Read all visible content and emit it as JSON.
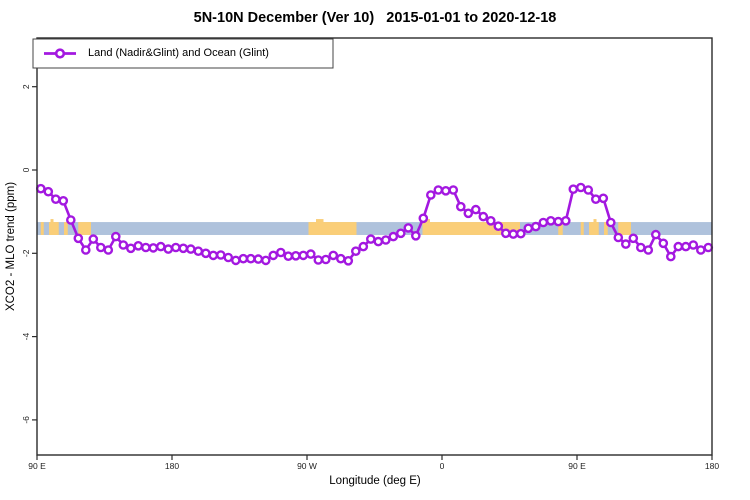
{
  "chart_data": {
    "type": "line",
    "title": "5N-10N December (Ver 10)   2015-01-01 to 2020-12-18",
    "xlabel": "Longitude (deg E)",
    "ylabel": "XCO2 - MLO trend (ppm)",
    "legend": {
      "label": "Land (Nadir&Glint) and Ocean (Glint)",
      "position": "top-left",
      "marker": "open-circle-on-line"
    },
    "x_axis": {
      "range_deg": [
        90,
        540
      ],
      "ticks": [
        {
          "lon": 90,
          "label": "90 E"
        },
        {
          "lon": 180,
          "label": "180"
        },
        {
          "lon": 270,
          "label": "90 W"
        },
        {
          "lon": 360,
          "label": "0"
        },
        {
          "lon": 450,
          "label": "90 E"
        },
        {
          "lon": 540,
          "label": "180"
        }
      ]
    },
    "y_axis": {
      "range": [
        -6.85,
        3.17
      ],
      "grid": false,
      "ticks": [
        {
          "value": 2,
          "label": "2"
        },
        {
          "value": 0,
          "label": "0"
        },
        {
          "value": -2,
          "label": "-2"
        },
        {
          "value": -4,
          "label": "-4"
        },
        {
          "value": -6,
          "label": "-6"
        }
      ]
    },
    "series": [
      {
        "name": "Land (Nadir&Glint) and Ocean (Glint)",
        "color": "#A318E0",
        "marker": "open-circle",
        "lon_start": 92.5,
        "lon_step": 5,
        "values": [
          -0.45,
          -0.52,
          -0.7,
          -0.74,
          -1.2,
          -1.64,
          -1.92,
          -1.66,
          -1.86,
          -1.92,
          -1.6,
          -1.8,
          -1.88,
          -1.82,
          -1.86,
          -1.87,
          -1.84,
          -1.9,
          -1.86,
          -1.88,
          -1.9,
          -1.95,
          -2.0,
          -2.05,
          -2.04,
          -2.1,
          -2.17,
          -2.13,
          -2.13,
          -2.14,
          -2.17,
          -2.05,
          -1.98,
          -2.07,
          -2.06,
          -2.05,
          -2.02,
          -2.16,
          -2.15,
          -2.05,
          -2.13,
          -2.18,
          -1.95,
          -1.84,
          -1.66,
          -1.72,
          -1.68,
          -1.6,
          -1.52,
          -1.39,
          -1.58,
          -1.16,
          -0.6,
          -0.48,
          -0.5,
          -0.48,
          -0.88,
          -1.04,
          -0.95,
          -1.12,
          -1.22,
          -1.35,
          -1.52,
          -1.54,
          -1.53,
          -1.4,
          -1.36,
          -1.26,
          -1.22,
          -1.24,
          -1.22,
          -0.46,
          -0.42,
          -0.48,
          -0.7,
          -0.68,
          -1.26,
          -1.62,
          -1.78,
          -1.64,
          -1.86,
          -1.92,
          -1.55,
          -1.76,
          -2.08,
          -1.84,
          -1.84,
          -1.8,
          -1.92,
          -1.86
        ]
      }
    ],
    "map_band": {
      "y_top": -1.25,
      "y_bottom": -1.56,
      "ocean_color": "#AFC2DC",
      "land_color": "#FACE78",
      "land_segments_deg": [
        [
          92.5,
          94.5
        ],
        [
          98,
          104.5
        ],
        [
          108,
          110.5
        ],
        [
          117.5,
          126
        ],
        [
          271,
          303
        ],
        [
          347,
          412
        ],
        [
          437.5,
          440.5
        ],
        [
          452.5,
          454.5
        ],
        [
          458,
          464.5
        ],
        [
          468,
          470.5
        ],
        [
          477.5,
          486
        ]
      ],
      "land_bumps_deg": [
        [
          99,
          101
        ],
        [
          276,
          281
        ],
        [
          346,
          352
        ],
        [
          461,
          463
        ]
      ]
    },
    "colors": {
      "axis": "#2b2b2b",
      "tick_text": "#222222"
    }
  }
}
